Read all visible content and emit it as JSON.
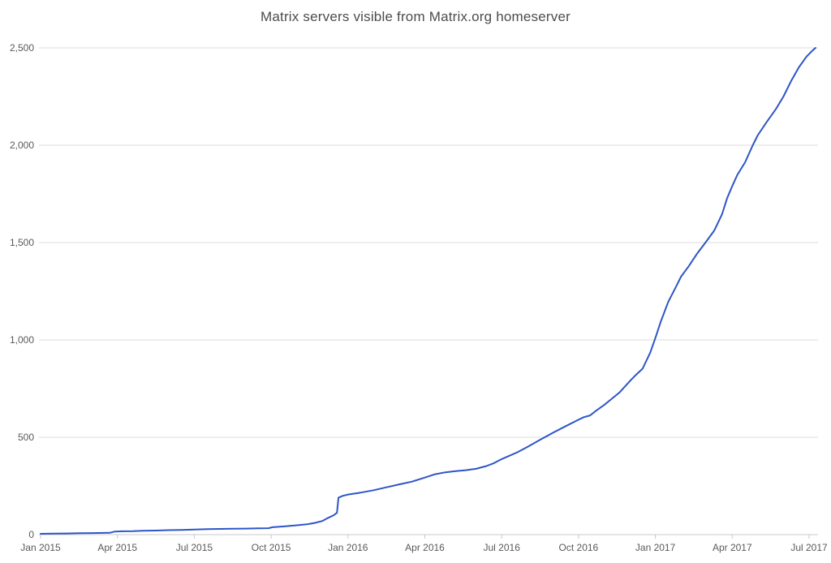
{
  "page": {
    "background_color": "#ffffff"
  },
  "chart_data": {
    "type": "line",
    "title": "Matrix servers visible from Matrix.org homeserver",
    "xlabel": "",
    "ylabel": "",
    "legend": "none",
    "grid": "horizontal",
    "ylim": [
      0,
      2500
    ],
    "x_axis_unit": "months since Jan 2015",
    "xlim_months": [
      0,
      30.25
    ],
    "x_ticks": [
      {
        "month": 0,
        "label": "Jan 2015"
      },
      {
        "month": 3,
        "label": "Apr 2015"
      },
      {
        "month": 6,
        "label": "Jul 2015"
      },
      {
        "month": 9,
        "label": "Oct 2015"
      },
      {
        "month": 12,
        "label": "Jan 2016"
      },
      {
        "month": 15,
        "label": "Apr 2016"
      },
      {
        "month": 18,
        "label": "Jul 2016"
      },
      {
        "month": 21,
        "label": "Oct 2016"
      },
      {
        "month": 24,
        "label": "Jan 2017"
      },
      {
        "month": 27,
        "label": "Apr 2017"
      },
      {
        "month": 30,
        "label": "Jul 2017"
      }
    ],
    "y_ticks": [
      {
        "value": 0,
        "label": "0"
      },
      {
        "value": 500,
        "label": "500"
      },
      {
        "value": 1000,
        "label": "1,000"
      },
      {
        "value": 1500,
        "label": "1,500"
      },
      {
        "value": 2000,
        "label": "2,000"
      },
      {
        "value": 2500,
        "label": "2,500"
      }
    ],
    "colors": {
      "line": "#2d55c8",
      "gridline": "#dcdcdc",
      "axis": "#c9c9c9",
      "tick": "#c9c9c9",
      "label_text": "#595959",
      "title_text": "#4c4c4c"
    },
    "series": [
      {
        "color": "#2d55c8",
        "points_month_value": [
          [
            0,
            4
          ],
          [
            0.5,
            5
          ],
          [
            1,
            6
          ],
          [
            1.5,
            7
          ],
          [
            2,
            8
          ],
          [
            2.7,
            9
          ],
          [
            2.9,
            16
          ],
          [
            3.2,
            17
          ],
          [
            3.6,
            18
          ],
          [
            4,
            20
          ],
          [
            4.5,
            21
          ],
          [
            5,
            23
          ],
          [
            5.5,
            24
          ],
          [
            6,
            26
          ],
          [
            6.5,
            28
          ],
          [
            7,
            29
          ],
          [
            7.5,
            30
          ],
          [
            8,
            31
          ],
          [
            8.5,
            32
          ],
          [
            8.9,
            33
          ],
          [
            9.05,
            38
          ],
          [
            9.5,
            42
          ],
          [
            10,
            48
          ],
          [
            10.4,
            53
          ],
          [
            10.7,
            60
          ],
          [
            11,
            70
          ],
          [
            11.2,
            84
          ],
          [
            11.45,
            100
          ],
          [
            11.57,
            112
          ],
          [
            11.63,
            190
          ],
          [
            11.8,
            199
          ],
          [
            12,
            206
          ],
          [
            12.5,
            216
          ],
          [
            13,
            228
          ],
          [
            13.5,
            243
          ],
          [
            14,
            258
          ],
          [
            14.5,
            272
          ],
          [
            15,
            293
          ],
          [
            15.4,
            310
          ],
          [
            15.8,
            320
          ],
          [
            16.2,
            326
          ],
          [
            16.6,
            331
          ],
          [
            17,
            338
          ],
          [
            17.4,
            352
          ],
          [
            17.7,
            367
          ],
          [
            18,
            388
          ],
          [
            18.3,
            405
          ],
          [
            18.6,
            422
          ],
          [
            19,
            450
          ],
          [
            19.5,
            487
          ],
          [
            20,
            523
          ],
          [
            20.5,
            557
          ],
          [
            21,
            590
          ],
          [
            21.2,
            603
          ],
          [
            21.45,
            612
          ],
          [
            21.7,
            638
          ],
          [
            22,
            666
          ],
          [
            22.3,
            698
          ],
          [
            22.6,
            730
          ],
          [
            23,
            788
          ],
          [
            23.2,
            815
          ],
          [
            23.5,
            852
          ],
          [
            23.8,
            935
          ],
          [
            24,
            1010
          ],
          [
            24.2,
            1090
          ],
          [
            24.5,
            1195
          ],
          [
            24.8,
            1272
          ],
          [
            25,
            1325
          ],
          [
            25.3,
            1378
          ],
          [
            25.6,
            1438
          ],
          [
            26,
            1508
          ],
          [
            26.3,
            1562
          ],
          [
            26.6,
            1645
          ],
          [
            26.8,
            1728
          ],
          [
            27,
            1790
          ],
          [
            27.2,
            1848
          ],
          [
            27.5,
            1912
          ],
          [
            27.8,
            2000
          ],
          [
            28,
            2052
          ],
          [
            28.35,
            2120
          ],
          [
            28.7,
            2185
          ],
          [
            29,
            2250
          ],
          [
            29.3,
            2330
          ],
          [
            29.6,
            2400
          ],
          [
            29.9,
            2455
          ],
          [
            30.1,
            2482
          ],
          [
            30.25,
            2500
          ]
        ]
      }
    ]
  }
}
